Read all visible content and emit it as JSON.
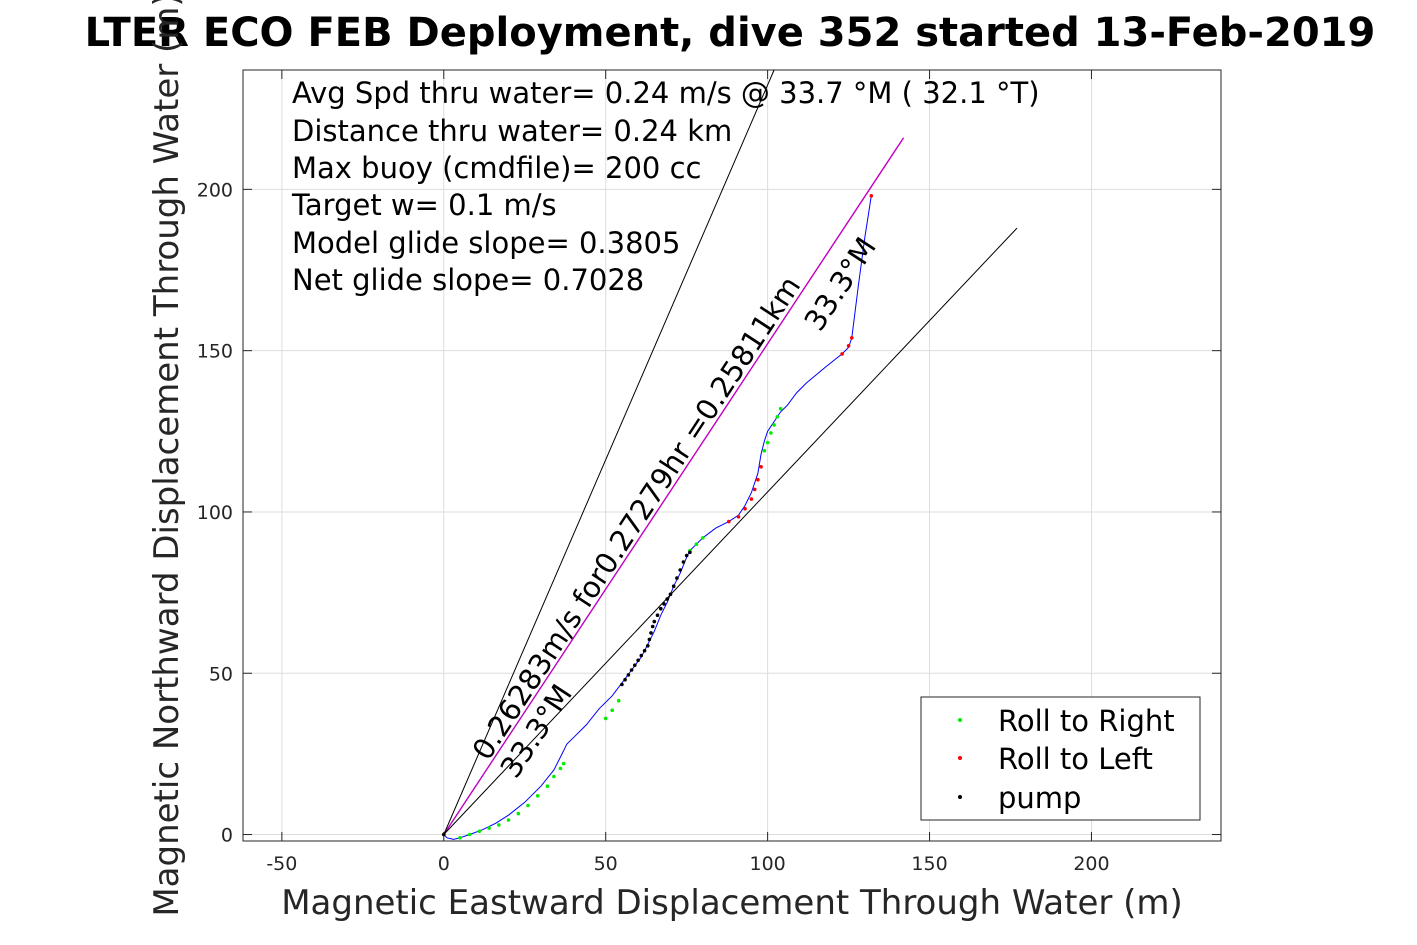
{
  "chart_data": {
    "type": "line",
    "title": "LTER ECO FEB Deployment, dive 352 started 13-Feb-2019",
    "xlabel": "Magnetic Eastward Displacement Through Water (m)",
    "ylabel": "Magnetic Northward Displacement Through Water (m)",
    "xlim": [
      -62,
      240
    ],
    "ylim": [
      -2,
      237
    ],
    "xticks": [
      -50,
      0,
      50,
      100,
      150,
      200
    ],
    "yticks": [
      0,
      50,
      100,
      150,
      200
    ],
    "xtick_labels": [
      "-50",
      "0",
      "50",
      "100",
      "150",
      "200"
    ],
    "ytick_labels": [
      "0",
      "50",
      "100",
      "150",
      "200"
    ],
    "grid": true,
    "stats_text": [
      "Avg Spd thru water=  0.24 m/s @  33.7 °M ( 32.1 °T)",
      "Distance thru water=  0.24 km",
      "Max buoy (cmdfile)= 200 cc",
      "Target w= 0.1 m/s",
      "Model glide slope= 0.3805",
      "Net glide slope= 0.7028"
    ],
    "annotations": {
      "line_label": "0.26283m/s for0.27279hr =0.25811km",
      "heading_label_start": "33.3°M",
      "heading_label_end": "33.3°M"
    },
    "colors": {
      "track": "#0000ff",
      "course_line": "#c000c0",
      "roll_right": "#00ee00",
      "roll_left": "#ff0000",
      "pump": "#000000",
      "cone": "#000000",
      "grid": "#dddddd"
    },
    "legend": {
      "location": "bottom-right",
      "entries": [
        "Roll to Right",
        "Roll to Left",
        "pump"
      ]
    },
    "series": [
      {
        "name": "track",
        "style": "line",
        "x": [
          0,
          1,
          3,
          5,
          8,
          12,
          16,
          20,
          25,
          30,
          34,
          36,
          38,
          40,
          44,
          48,
          52,
          55,
          58,
          61,
          63,
          65,
          67,
          69,
          71,
          73,
          75,
          76,
          78,
          80,
          84,
          88,
          91,
          93,
          95,
          97,
          98,
          99,
          100,
          102,
          104,
          106,
          109,
          112,
          118,
          123,
          125,
          126,
          128,
          130,
          132
        ],
        "y": [
          0,
          -1,
          -1.5,
          -1,
          0,
          1.5,
          3.5,
          6,
          10,
          15,
          20,
          24,
          28,
          30,
          34,
          39,
          43,
          47,
          51,
          55,
          59,
          63,
          68,
          72,
          77,
          81,
          86,
          88,
          90,
          92,
          95,
          97,
          99,
          102,
          106,
          112,
          118,
          122,
          125,
          128,
          131,
          133,
          137,
          140,
          145,
          149,
          151,
          154,
          170,
          185,
          198
        ]
      },
      {
        "name": "Roll to Right",
        "style": "points",
        "x": [
          5,
          8,
          11,
          14,
          17,
          20,
          23,
          26,
          29,
          32,
          34,
          36,
          37,
          50,
          52,
          54,
          76,
          78,
          80,
          99,
          100,
          101,
          102,
          103,
          104
        ],
        "y": [
          -1,
          0,
          1,
          2,
          3,
          4.5,
          6.5,
          9,
          12,
          15,
          18,
          20.5,
          22,
          36,
          38.5,
          41.5,
          88,
          90,
          92,
          119,
          121.5,
          124.5,
          127,
          129.5,
          132
        ]
      },
      {
        "name": "Roll to Left",
        "style": "points",
        "x": [
          0,
          88,
          91,
          93,
          95,
          96,
          97,
          98,
          123,
          125,
          126,
          132
        ],
        "y": [
          0,
          97,
          98.5,
          101,
          104,
          107,
          110,
          114,
          149,
          151.5,
          154,
          198
        ]
      },
      {
        "name": "pump",
        "style": "points",
        "x": [
          0,
          55,
          56,
          57,
          58,
          59,
          60,
          61,
          62,
          63,
          63.5,
          64,
          64.5,
          65,
          66,
          67,
          68,
          69,
          70,
          71,
          72,
          73,
          74,
          75,
          76
        ],
        "y": [
          0,
          46.5,
          48,
          49.5,
          51,
          52.5,
          54,
          55.5,
          57,
          58.5,
          60.5,
          62.5,
          64.5,
          66,
          68,
          70,
          71.5,
          73,
          74.5,
          77,
          79.5,
          82,
          84.5,
          86.5,
          87.5
        ]
      },
      {
        "name": "course line",
        "style": "line",
        "x": [
          0,
          142
        ],
        "y": [
          0,
          216
        ]
      },
      {
        "name": "cone left",
        "style": "line",
        "x": [
          0,
          102
        ],
        "y": [
          0,
          237
        ]
      },
      {
        "name": "cone right",
        "style": "line",
        "x": [
          0,
          177
        ],
        "y": [
          0,
          188
        ]
      }
    ]
  }
}
